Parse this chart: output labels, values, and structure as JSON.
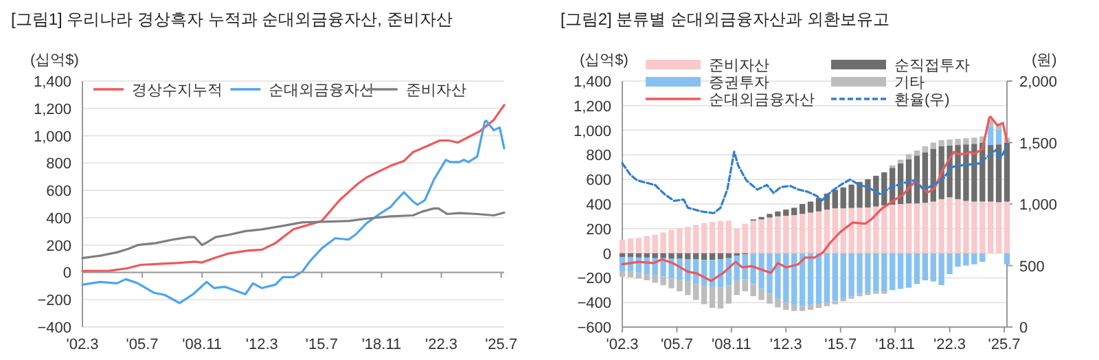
{
  "chart_data": [
    {
      "type": "line",
      "title": "[그림1] 우리나라 경상흑자 누적과 순대외금융자산, 준비자산",
      "ylabel": "(십억$)",
      "xlim": [
        "2002-03",
        "2025-09"
      ],
      "xticks": [
        {
          "value": "2002-03",
          "label": "'02.3"
        },
        {
          "value": "2005-07",
          "label": "'05.7"
        },
        {
          "value": "2008-11",
          "label": "'08.11"
        },
        {
          "value": "2012-03",
          "label": "'12.3"
        },
        {
          "value": "2015-07",
          "label": "'15.7"
        },
        {
          "value": "2018-11",
          "label": "'18.11"
        },
        {
          "value": "2022-03",
          "label": "'22.3"
        },
        {
          "value": "2025-07",
          "label": "'25.7"
        }
      ],
      "ylim": [
        -400,
        1400
      ],
      "yticks": [
        {
          "value": -400,
          "label": "−400"
        },
        {
          "value": -200,
          "label": "−200"
        },
        0,
        200,
        400,
        600,
        800,
        {
          "value": 1000,
          "label": "1,000"
        },
        {
          "value": 1200,
          "label": "1,200"
        },
        {
          "value": 1400,
          "label": "1,400"
        }
      ],
      "grid": "y",
      "legend": "top",
      "series": [
        {
          "name": "경상수지누적",
          "color": "#f0575b",
          "x": [
            "2002-03",
            "2003-09",
            "2004-09",
            "2005-06",
            "2006-06",
            "2007-06",
            "2008-06",
            "2008-11",
            "2009-06",
            "2010-05",
            "2011-06",
            "2012-03",
            "2012-12",
            "2013-12",
            "2015-07",
            "2016-07",
            "2017-07",
            "2018-01",
            "2019-05",
            "2020-02",
            "2020-08",
            "2022-02",
            "2022-08",
            "2023-02",
            "2024-05",
            "2025-02",
            "2025-09"
          ],
          "values": [
            10,
            12,
            30,
            55,
            62,
            68,
            78,
            72,
            100,
            139,
            160,
            166,
            214,
            315,
            376,
            529,
            647,
            695,
            780,
            815,
            880,
            965,
            965,
            950,
            1035,
            1115,
            1225
          ]
        },
        {
          "name": "순대외금융자산",
          "color": "#4da3ee",
          "x": [
            "2002-03",
            "2003-03",
            "2004-02",
            "2004-08",
            "2005-04",
            "2006-03",
            "2006-10",
            "2007-08",
            "2008-05",
            "2009-02",
            "2009-07",
            "2010-02",
            "2011-04",
            "2011-09",
            "2012-03",
            "2012-12",
            "2013-05",
            "2013-12",
            "2014-06",
            "2014-11",
            "2015-07",
            "2016-04",
            "2017-01",
            "2017-06",
            "2018-01",
            "2018-11",
            "2019-05",
            "2019-09",
            "2020-02",
            "2020-08",
            "2020-11",
            "2021-04",
            "2021-10",
            "2022-06",
            "2022-09",
            "2023-03",
            "2023-06",
            "2023-09",
            "2024-03",
            "2024-08",
            "2024-09",
            "2025-02",
            "2025-06",
            "2025-09"
          ],
          "values": [
            -90,
            -70,
            -80,
            -50,
            -80,
            -150,
            -165,
            -225,
            -160,
            -70,
            -115,
            -105,
            -160,
            -80,
            -115,
            -90,
            -35,
            -35,
            5,
            80,
            175,
            250,
            240,
            280,
            360,
            437,
            478,
            529,
            586,
            519,
            495,
            529,
            678,
            824,
            807,
            807,
            824,
            807,
            848,
            1102,
            1110,
            1040,
            1060,
            908
          ]
        },
        {
          "name": "준비자산",
          "color": "#7f7f7f",
          "x": [
            "2002-03",
            "2003-03",
            "2004-02",
            "2004-10",
            "2005-04",
            "2006-04",
            "2007-04",
            "2008-02",
            "2008-06",
            "2008-11",
            "2009-03",
            "2009-08",
            "2010-05",
            "2011-04",
            "2012-03",
            "2013-06",
            "2014-06",
            "2015-07",
            "2017-01",
            "2018-01",
            "2019-05",
            "2020-08",
            "2021-02",
            "2021-10",
            "2022-01",
            "2022-07",
            "2023-03",
            "2024-03",
            "2025-02",
            "2025-09"
          ],
          "values": [
            105,
            122,
            146,
            173,
            200,
            214,
            241,
            258,
            258,
            200,
            224,
            258,
            275,
            302,
            315,
            342,
            366,
            370,
            376,
            393,
            410,
            417,
            444,
            468,
            468,
            427,
            434,
            427,
            417,
            437
          ]
        }
      ]
    },
    {
      "type": "bar",
      "stacked": true,
      "title": "[그림2] 분류별 순대외금융자산과 외환보유고",
      "ylabel": "(십억$)",
      "y2label": "(원)",
      "xlim": [
        "2002-03",
        "2025-09"
      ],
      "xticks": [
        {
          "value": "2002-03",
          "label": "'02.3"
        },
        {
          "value": "2005-07",
          "label": "'05.7"
        },
        {
          "value": "2008-11",
          "label": "'08.11"
        },
        {
          "value": "2012-03",
          "label": "'12.3"
        },
        {
          "value": "2015-07",
          "label": "'15.7"
        },
        {
          "value": "2018-11",
          "label": "'18.11"
        },
        {
          "value": "2022-03",
          "label": "'22.3"
        },
        {
          "value": "2025-07",
          "label": "'25.7"
        }
      ],
      "ylim": [
        -600,
        1400
      ],
      "yticks": [
        {
          "value": -600,
          "label": "−600"
        },
        {
          "value": -400,
          "label": "−400"
        },
        {
          "value": -200,
          "label": "−200"
        },
        0,
        200,
        400,
        600,
        800,
        {
          "value": 1000,
          "label": "1,000"
        },
        {
          "value": 1200,
          "label": "1,200"
        },
        {
          "value": 1400,
          "label": "1,400"
        }
      ],
      "y2lim": [
        0,
        2000
      ],
      "y2ticks": [
        0,
        500,
        {
          "value": 1000,
          "label": "1,000"
        },
        {
          "value": 1500,
          "label": "1,500"
        },
        {
          "value": 2000,
          "label": "2,000"
        }
      ],
      "grid": "y",
      "legend": "top left",
      "x": [
        "2002-03",
        "2002-09",
        "2003-03",
        "2003-09",
        "2004-03",
        "2004-09",
        "2005-03",
        "2005-09",
        "2006-03",
        "2006-09",
        "2007-03",
        "2007-09",
        "2008-03",
        "2008-09",
        "2009-03",
        "2009-09",
        "2010-03",
        "2010-09",
        "2011-03",
        "2011-09",
        "2012-03",
        "2012-09",
        "2013-03",
        "2013-09",
        "2014-03",
        "2014-09",
        "2015-03",
        "2015-09",
        "2016-03",
        "2016-09",
        "2017-03",
        "2017-09",
        "2018-03",
        "2018-09",
        "2019-03",
        "2019-09",
        "2020-03",
        "2020-09",
        "2021-03",
        "2021-09",
        "2022-03",
        "2022-09",
        "2023-03",
        "2023-09",
        "2024-03",
        "2024-09",
        "2025-03",
        "2025-09"
      ],
      "series": [
        {
          "name": "준비자산",
          "color": "#f9c9cb",
          "values": [
            110,
            120,
            125,
            140,
            150,
            170,
            190,
            205,
            215,
            230,
            245,
            255,
            262,
            265,
            200,
            240,
            265,
            275,
            290,
            300,
            305,
            310,
            320,
            330,
            340,
            355,
            365,
            365,
            368,
            370,
            372,
            380,
            388,
            395,
            400,
            405,
            405,
            410,
            420,
            440,
            455,
            440,
            425,
            420,
            420,
            420,
            415,
            420
          ]
        },
        {
          "name": "순직접투자",
          "color": "#6e6e6e",
          "values": [
            -30,
            -30,
            -35,
            -35,
            -40,
            -40,
            -45,
            -45,
            -50,
            -50,
            -55,
            -55,
            -50,
            -40,
            -20,
            -10,
            10,
            20,
            30,
            40,
            50,
            60,
            80,
            90,
            110,
            130,
            150,
            170,
            190,
            210,
            230,
            250,
            270,
            300,
            330,
            360,
            390,
            410,
            430,
            430,
            420,
            440,
            460,
            470,
            480,
            460,
            470,
            480
          ]
        },
        {
          "name": "증권투자",
          "color": "#86c1f2",
          "values": [
            -120,
            -120,
            -125,
            -135,
            -140,
            -150,
            -160,
            -170,
            -180,
            -200,
            -210,
            -220,
            -230,
            -220,
            -200,
            -200,
            -250,
            -290,
            -330,
            -370,
            -400,
            -420,
            -430,
            -420,
            -410,
            -400,
            -390,
            -370,
            -350,
            -330,
            -320,
            -310,
            -310,
            -300,
            -290,
            -280,
            -250,
            -220,
            -230,
            -260,
            -170,
            -110,
            -100,
            -90,
            -70,
            150,
            120,
            -90
          ]
        },
        {
          "name": "기타",
          "color": "#bdbdbd",
          "values": [
            -40,
            -45,
            -45,
            -50,
            -60,
            -70,
            -80,
            -95,
            -110,
            -130,
            -150,
            -170,
            -170,
            -150,
            -120,
            -100,
            -100,
            -90,
            -80,
            -70,
            -60,
            -50,
            -40,
            -40,
            -35,
            -30,
            -25,
            -20,
            -20,
            -20,
            -20,
            -20,
            -20,
            20,
            30,
            40,
            40,
            50,
            50,
            50,
            50,
            50,
            50,
            50,
            50,
            60,
            50,
            40
          ]
        },
        {
          "name": "순대외금융자산",
          "type": "line",
          "color": "#f0575b",
          "x": [
            "2002-03",
            "2003-03",
            "2004-02",
            "2004-08",
            "2005-04",
            "2006-03",
            "2006-10",
            "2007-08",
            "2008-05",
            "2009-02",
            "2009-07",
            "2010-02",
            "2011-04",
            "2011-09",
            "2012-03",
            "2012-12",
            "2013-05",
            "2013-12",
            "2014-06",
            "2014-11",
            "2015-07",
            "2016-04",
            "2017-01",
            "2017-06",
            "2018-01",
            "2018-11",
            "2019-05",
            "2019-09",
            "2020-02",
            "2020-08",
            "2020-11",
            "2021-04",
            "2021-10",
            "2022-06",
            "2022-09",
            "2023-03",
            "2023-06",
            "2023-09",
            "2024-03",
            "2024-08",
            "2024-09",
            "2025-02",
            "2025-06",
            "2025-09"
          ],
          "values": [
            -90,
            -70,
            -80,
            -50,
            -80,
            -150,
            -165,
            -225,
            -160,
            -70,
            -115,
            -105,
            -160,
            -80,
            -115,
            -90,
            -35,
            -35,
            5,
            80,
            175,
            250,
            240,
            280,
            360,
            437,
            478,
            529,
            586,
            519,
            495,
            529,
            678,
            824,
            807,
            807,
            824,
            807,
            848,
            1102,
            1110,
            1040,
            1060,
            908
          ]
        },
        {
          "name": "환율(우)",
          "type": "line",
          "axis": "y2",
          "line_style": "dashed",
          "color": "#2f7fd0",
          "x": [
            "2002-03",
            "2002-09",
            "2003-02",
            "2004-03",
            "2004-10",
            "2005-05",
            "2005-12",
            "2006-03",
            "2007-01",
            "2007-10",
            "2008-03",
            "2008-08",
            "2009-01",
            "2009-04",
            "2009-10",
            "2010-06",
            "2011-01",
            "2011-06",
            "2011-11",
            "2012-06",
            "2012-12",
            "2013-07",
            "2014-02",
            "2014-05",
            "2014-12",
            "2015-07",
            "2016-02",
            "2016-09",
            "2017-03",
            "2017-12",
            "2018-08",
            "2019-06",
            "2020-01",
            "2020-08",
            "2021-03",
            "2021-10",
            "2022-04",
            "2023-03",
            "2024-01",
            "2024-07",
            "2025-01",
            "2025-04",
            "2025-09"
          ],
          "values": [
            1331,
            1237,
            1192,
            1155,
            1080,
            1026,
            1037,
            970,
            940,
            926,
            970,
            1118,
            1425,
            1312,
            1192,
            1118,
            1155,
            1089,
            1137,
            1148,
            1118,
            1100,
            1063,
            1026,
            1100,
            1155,
            1199,
            1155,
            1137,
            1081,
            1137,
            1174,
            1192,
            1118,
            1155,
            1199,
            1300,
            1320,
            1330,
            1387,
            1440,
            1368,
            1470
          ]
        }
      ]
    }
  ]
}
